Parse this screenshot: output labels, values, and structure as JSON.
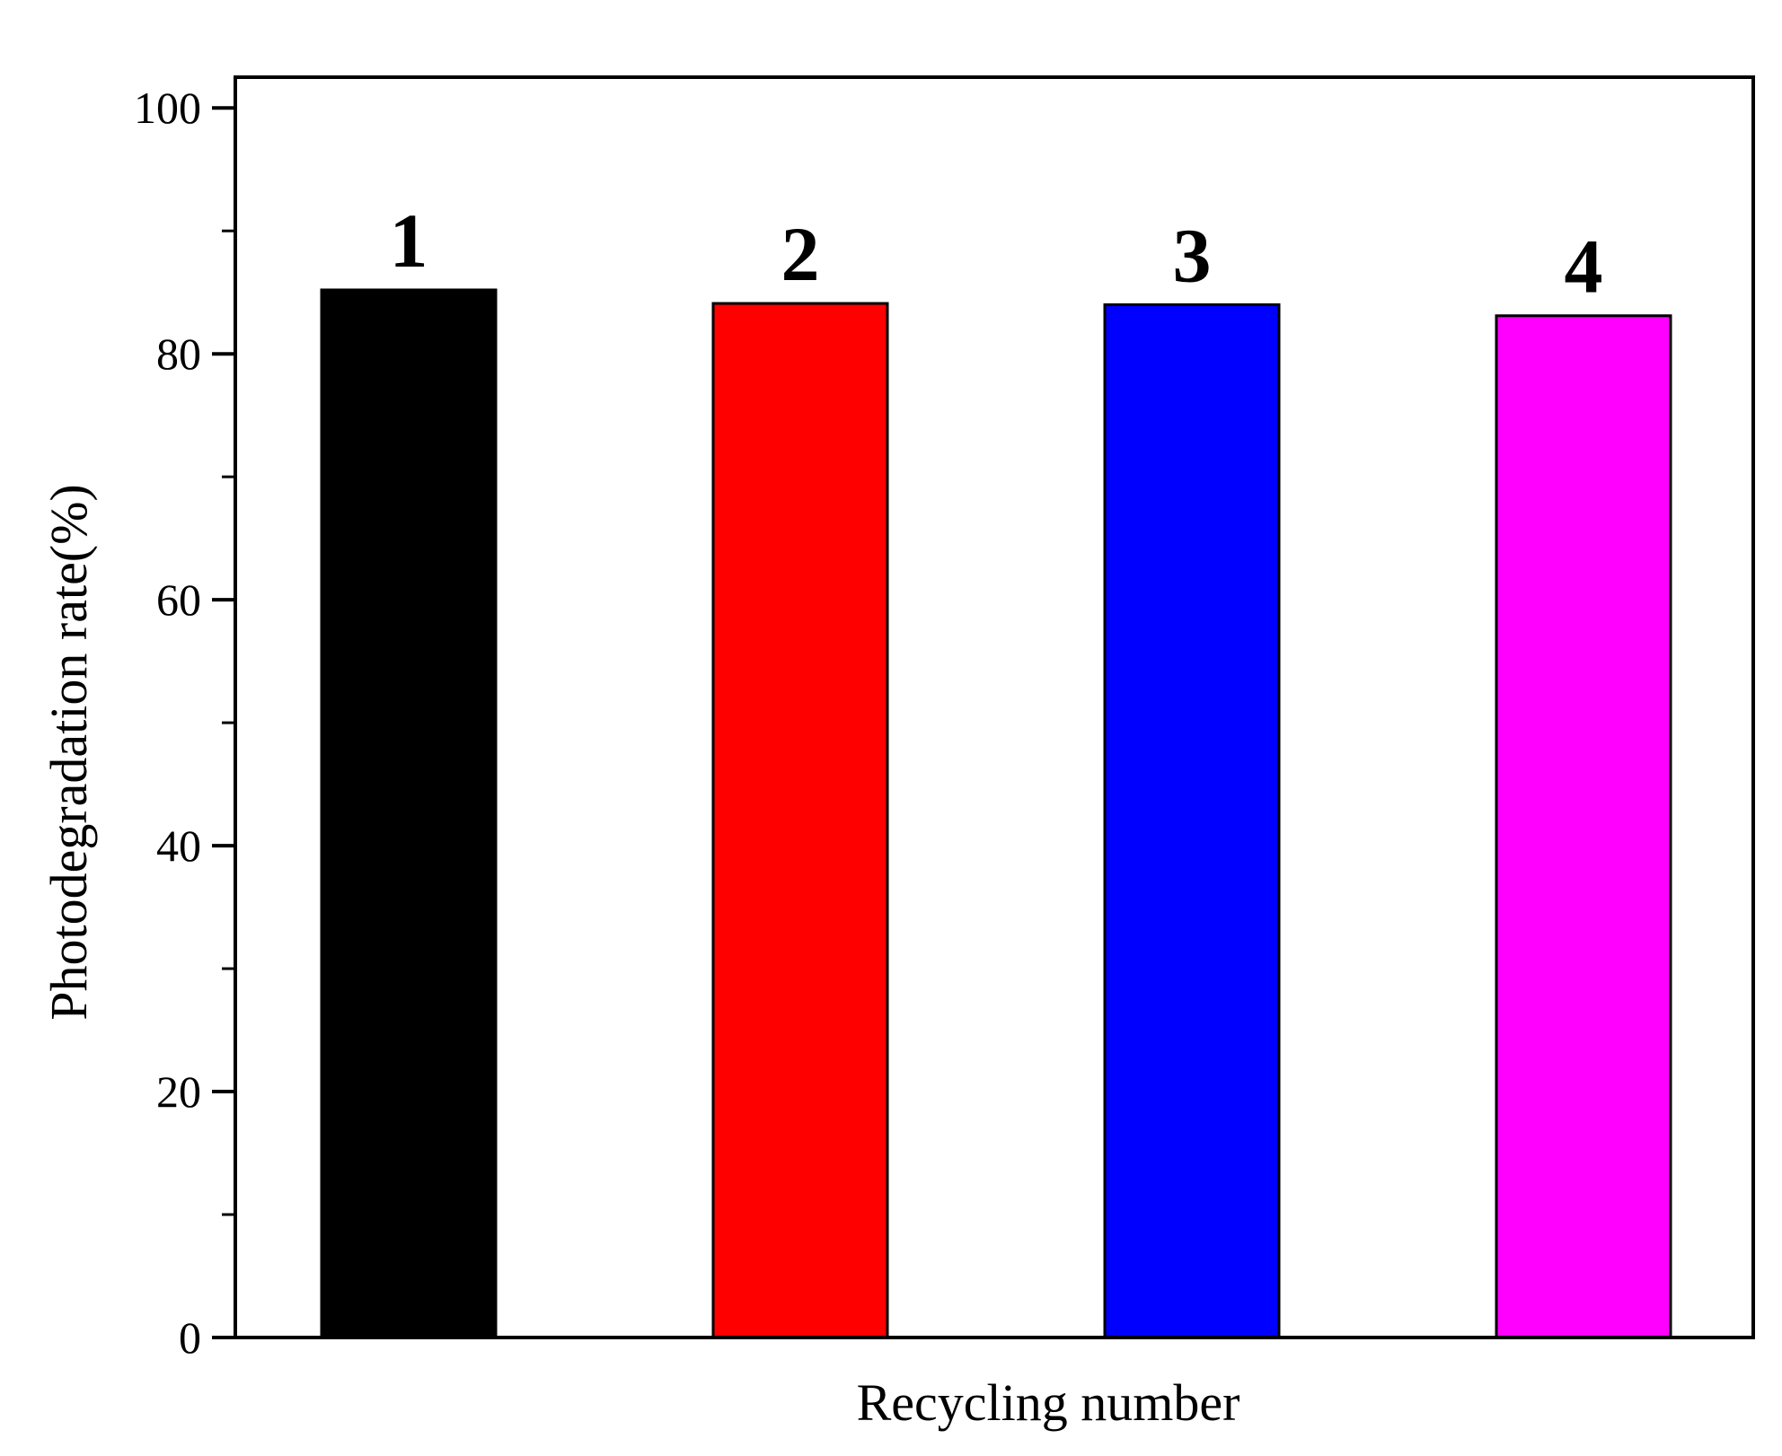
{
  "chart_data": {
    "type": "bar",
    "categories": [
      "1",
      "2",
      "3",
      "4"
    ],
    "values": [
      85.2,
      84.1,
      84.0,
      83.1
    ],
    "colors": [
      "#000000",
      "#ff0000",
      "#0000ff",
      "#ff00ff"
    ],
    "bar_labels": [
      "1",
      "2",
      "3",
      "4"
    ],
    "xlabel": "Recycling number",
    "ylabel": "Photodegradation rate(%)",
    "ylim": [
      0,
      102.5
    ],
    "y_major_ticks": [
      0,
      20,
      40,
      60,
      80,
      100
    ],
    "y_tick_labels": [
      "0",
      "20",
      "40",
      "60",
      "80",
      "100"
    ],
    "y_minor_ticks": [
      10,
      30,
      50,
      70,
      90
    ],
    "grid": false,
    "legend": "none",
    "frame": "box"
  }
}
